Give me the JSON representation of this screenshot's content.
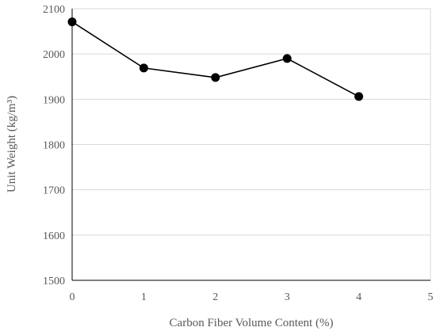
{
  "chart_data": {
    "type": "line",
    "xlabel": "Carbon Fiber Volume Content (%)",
    "ylabel": "Unit Weight (kg/m³)",
    "xlim": [
      0,
      5
    ],
    "ylim": [
      1500,
      2100
    ],
    "xticks": [
      "0",
      "1",
      "2",
      "3",
      "4",
      "5"
    ],
    "yticks": [
      "1500",
      "1600",
      "1700",
      "1800",
      "1900",
      "2000",
      "2100"
    ],
    "grid": "horizontal",
    "legend": "none",
    "series": [
      {
        "x": [
          0,
          1,
          2,
          3,
          4
        ],
        "y": [
          2071,
          1969,
          1948,
          1990,
          1906
        ],
        "color": "#000000"
      }
    ]
  }
}
